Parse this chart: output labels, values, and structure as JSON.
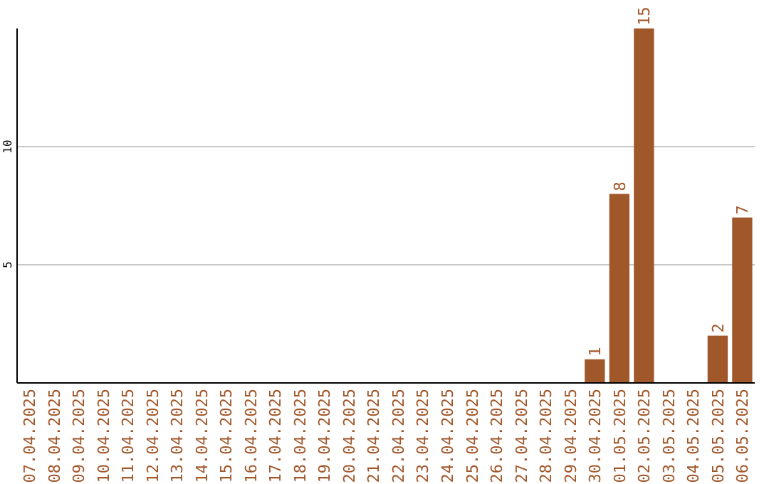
{
  "chart_data": {
    "type": "bar",
    "categories": [
      "07.04.2025",
      "08.04.2025",
      "09.04.2025",
      "10.04.2025",
      "11.04.2025",
      "12.04.2025",
      "13.04.2025",
      "14.04.2025",
      "15.04.2025",
      "16.04.2025",
      "17.04.2025",
      "18.04.2025",
      "19.04.2025",
      "20.04.2025",
      "21.04.2025",
      "22.04.2025",
      "23.04.2025",
      "24.04.2025",
      "25.04.2025",
      "26.04.2025",
      "27.04.2025",
      "28.04.2025",
      "29.04.2025",
      "30.04.2025",
      "01.05.2025",
      "02.05.2025",
      "03.05.2025",
      "04.05.2025",
      "05.05.2025",
      "06.05.2025"
    ],
    "values": [
      0,
      0,
      0,
      0,
      0,
      0,
      0,
      0,
      0,
      0,
      0,
      0,
      0,
      0,
      0,
      0,
      0,
      0,
      0,
      0,
      0,
      0,
      0,
      1,
      8,
      15,
      0,
      0,
      2,
      7
    ],
    "value_labels": [
      null,
      null,
      null,
      null,
      null,
      null,
      null,
      null,
      null,
      null,
      null,
      null,
      null,
      null,
      null,
      null,
      null,
      null,
      null,
      null,
      null,
      null,
      null,
      "1",
      "8",
      "15",
      null,
      null,
      "2",
      "7"
    ],
    "color": "#a0572a",
    "ylim": [
      0,
      15
    ],
    "yticks": [
      5,
      10
    ],
    "grid": "y"
  }
}
